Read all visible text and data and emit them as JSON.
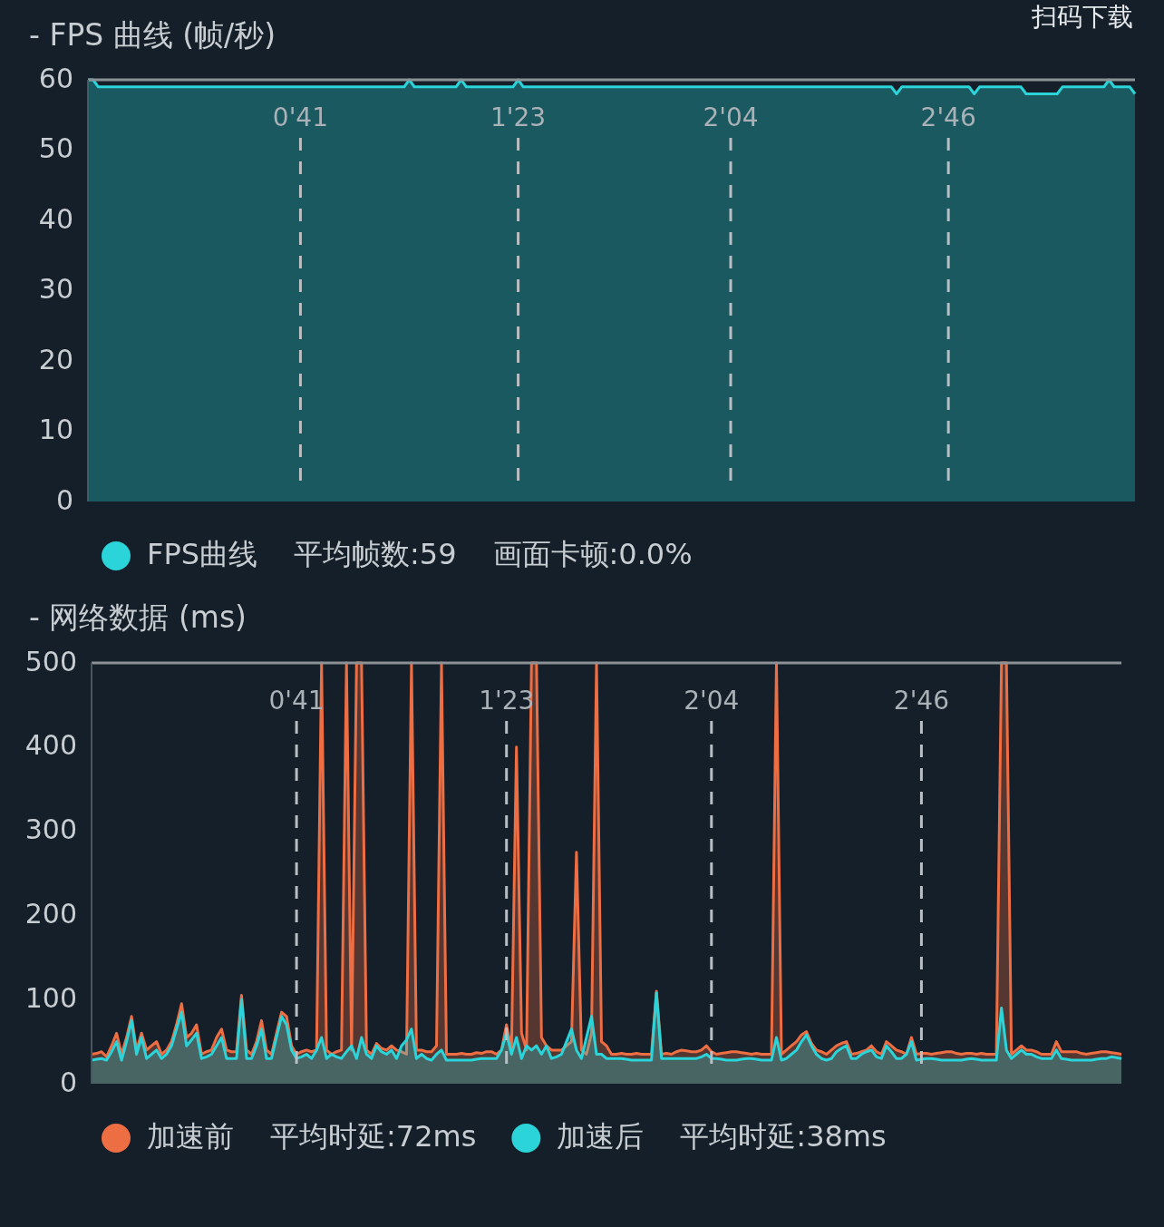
{
  "chart_data": [
    {
      "type": "area",
      "title": "- FPS 曲线 (帧/秒)",
      "categories": [
        null,
        null,
        null,
        null,
        null,
        null,
        null,
        null,
        null,
        null,
        null,
        null,
        null,
        null,
        null,
        null,
        null,
        null,
        null,
        null,
        null,
        null,
        null,
        null,
        null,
        null,
        null,
        null,
        null,
        null,
        null,
        null,
        null,
        null,
        null,
        null,
        null,
        null,
        null,
        null,
        null,
        "0'41",
        null,
        null,
        null,
        null,
        null,
        null,
        null,
        null,
        null,
        null,
        null,
        null,
        null,
        null,
        null,
        null,
        null,
        null,
        null,
        null,
        null,
        null,
        null,
        null,
        null,
        null,
        null,
        null,
        null,
        null,
        null,
        null,
        null,
        null,
        null,
        null,
        null,
        null,
        null,
        null,
        null,
        "1'23",
        null,
        null,
        null,
        null,
        null,
        null,
        null,
        null,
        null,
        null,
        null,
        null,
        null,
        null,
        null,
        null,
        null,
        null,
        null,
        null,
        null,
        null,
        null,
        null,
        null,
        null,
        null,
        null,
        null,
        null,
        null,
        null,
        null,
        null,
        null,
        null,
        null,
        null,
        null,
        null,
        "2'04",
        null,
        null,
        null,
        null,
        null,
        null,
        null,
        null,
        null,
        null,
        null,
        null,
        null,
        null,
        null,
        null,
        null,
        null,
        null,
        null,
        null,
        null,
        null,
        null,
        null,
        null,
        null,
        null,
        null,
        null,
        null,
        null,
        null,
        null,
        null,
        null,
        null,
        null,
        null,
        null,
        null,
        "2'46",
        null,
        null,
        null,
        null,
        null,
        null,
        null,
        null,
        null,
        null,
        null,
        null,
        null,
        null,
        null,
        null,
        null,
        null,
        null,
        null,
        null,
        null,
        null,
        null,
        null,
        null,
        null,
        null,
        null,
        null,
        null,
        null,
        null,
        null,
        null,
        null
      ],
      "series": [
        {
          "name": "FPS曲线",
          "color": "#2ad4d9",
          "values": [
            60,
            60,
            59,
            59,
            59,
            59,
            59,
            59,
            59,
            59,
            59,
            59,
            59,
            59,
            59,
            59,
            59,
            59,
            59,
            59,
            59,
            59,
            59,
            59,
            59,
            59,
            59,
            59,
            59,
            59,
            59,
            59,
            59,
            59,
            59,
            59,
            59,
            59,
            59,
            59,
            59,
            59,
            59,
            59,
            59,
            59,
            59,
            59,
            59,
            59,
            59,
            59,
            59,
            59,
            59,
            59,
            59,
            59,
            59,
            59,
            59,
            59,
            60,
            59,
            59,
            59,
            59,
            59,
            59,
            59,
            59,
            59,
            60,
            59,
            59,
            59,
            59,
            59,
            59,
            59,
            59,
            59,
            59,
            60,
            59,
            59,
            59,
            59,
            59,
            59,
            59,
            59,
            59,
            59,
            59,
            59,
            59,
            59,
            59,
            59,
            59,
            59,
            59,
            59,
            59,
            59,
            59,
            59,
            59,
            59,
            59,
            59,
            59,
            59,
            59,
            59,
            59,
            59,
            59,
            59,
            59,
            59,
            59,
            59,
            59,
            59,
            59,
            59,
            59,
            59,
            59,
            59,
            59,
            59,
            59,
            59,
            59,
            59,
            59,
            59,
            59,
            59,
            59,
            59,
            59,
            59,
            59,
            59,
            59,
            59,
            59,
            59,
            59,
            59,
            59,
            59,
            58,
            59,
            59,
            59,
            59,
            59,
            59,
            59,
            59,
            59,
            59,
            59,
            59,
            59,
            59,
            58,
            59,
            59,
            59,
            59,
            59,
            59,
            59,
            59,
            59,
            58,
            58,
            58,
            58,
            58,
            58,
            58,
            59,
            59,
            59,
            59,
            59,
            59,
            59,
            59,
            59,
            60,
            59,
            59,
            59,
            59,
            58
          ]
        }
      ],
      "ylim": [
        0,
        60
      ],
      "yticks": [
        0,
        10,
        20,
        30,
        40,
        50,
        60
      ],
      "legend": "bottom",
      "grid": "x",
      "annotations": [
        "平均帧数:59",
        "画面卡顿:0.0%",
        "扫码下载"
      ]
    },
    {
      "type": "area",
      "title": "- 网络数据 (ms)",
      "categories": [
        null,
        null,
        null,
        null,
        null,
        null,
        null,
        null,
        null,
        null,
        null,
        null,
        null,
        null,
        null,
        null,
        null,
        null,
        null,
        null,
        null,
        null,
        null,
        null,
        null,
        null,
        null,
        null,
        null,
        null,
        null,
        null,
        null,
        null,
        null,
        null,
        null,
        null,
        null,
        null,
        null,
        "0'41",
        null,
        null,
        null,
        null,
        null,
        null,
        null,
        null,
        null,
        null,
        null,
        null,
        null,
        null,
        null,
        null,
        null,
        null,
        null,
        null,
        null,
        null,
        null,
        null,
        null,
        null,
        null,
        null,
        null,
        null,
        null,
        null,
        null,
        null,
        null,
        null,
        null,
        null,
        null,
        null,
        null,
        "1'23",
        null,
        null,
        null,
        null,
        null,
        null,
        null,
        null,
        null,
        null,
        null,
        null,
        null,
        null,
        null,
        null,
        null,
        null,
        null,
        null,
        null,
        null,
        null,
        null,
        null,
        null,
        null,
        null,
        null,
        null,
        null,
        null,
        null,
        null,
        null,
        null,
        null,
        null,
        null,
        null,
        "2'04",
        null,
        null,
        null,
        null,
        null,
        null,
        null,
        null,
        null,
        null,
        null,
        null,
        null,
        null,
        null,
        null,
        null,
        null,
        null,
        null,
        null,
        null,
        null,
        null,
        null,
        null,
        null,
        null,
        null,
        null,
        null,
        null,
        null,
        null,
        null,
        null,
        null,
        null,
        null,
        null,
        null,
        "2'46",
        null,
        null,
        null,
        null,
        null,
        null,
        null,
        null,
        null,
        null,
        null,
        null,
        null,
        null,
        null,
        null,
        null,
        null,
        null,
        null,
        null,
        null,
        null,
        null,
        null,
        null,
        null,
        null,
        null,
        null,
        null,
        null,
        null,
        null,
        null,
        null,
        null,
        null,
        null,
        null
      ],
      "series": [
        {
          "name": "加速前",
          "color": "#ee6e44",
          "values": [
            35,
            36,
            38,
            32,
            45,
            60,
            35,
            55,
            80,
            40,
            60,
            40,
            45,
            50,
            35,
            40,
            50,
            70,
            95,
            55,
            60,
            70,
            35,
            38,
            40,
            55,
            65,
            40,
            38,
            38,
            105,
            40,
            35,
            50,
            75,
            40,
            35,
            60,
            85,
            80,
            45,
            35,
            38,
            40,
            38,
            40,
            500,
            40,
            35,
            38,
            40,
            500,
            40,
            500,
            500,
            40,
            35,
            48,
            42,
            40,
            45,
            40,
            38,
            35,
            500,
            40,
            40,
            38,
            38,
            45,
            500,
            35,
            35,
            35,
            36,
            35,
            35,
            37,
            36,
            38,
            38,
            35,
            40,
            70,
            40,
            400,
            60,
            40,
            500,
            500,
            55,
            45,
            40,
            40,
            40,
            45,
            50,
            275,
            40,
            35,
            60,
            500,
            50,
            45,
            35,
            35,
            36,
            35,
            35,
            36,
            35,
            35,
            35,
            110,
            35,
            36,
            35,
            38,
            40,
            39,
            38,
            38,
            40,
            45,
            38,
            35,
            36,
            37,
            38,
            38,
            37,
            36,
            35,
            36,
            35,
            35,
            35,
            500,
            35,
            40,
            45,
            50,
            58,
            62,
            48,
            40,
            38,
            35,
            40,
            45,
            48,
            50,
            35,
            36,
            38,
            40,
            45,
            38,
            35,
            50,
            45,
            40,
            38,
            35,
            55,
            35,
            36,
            36,
            35,
            36,
            37,
            38,
            38,
            36,
            35,
            36,
            36,
            35,
            36,
            35,
            35,
            35,
            500,
            500,
            35,
            40,
            45,
            40,
            40,
            38,
            35,
            35,
            35,
            50,
            38,
            38,
            38,
            38,
            36,
            35,
            36,
            37,
            38,
            38,
            37,
            36,
            35
          ]
        },
        {
          "name": "加速后",
          "color": "#2ad4d9",
          "values": [
            28,
            29,
            30,
            28,
            38,
            50,
            28,
            50,
            75,
            35,
            55,
            30,
            35,
            40,
            30,
            35,
            45,
            65,
            85,
            45,
            52,
            60,
            30,
            32,
            35,
            45,
            55,
            30,
            30,
            30,
            100,
            30,
            30,
            45,
            65,
            30,
            30,
            55,
            80,
            70,
            40,
            30,
            32,
            35,
            30,
            40,
            55,
            30,
            35,
            32,
            30,
            38,
            45,
            30,
            55,
            35,
            30,
            45,
            38,
            35,
            40,
            30,
            45,
            52,
            65,
            30,
            35,
            30,
            28,
            35,
            40,
            28,
            28,
            28,
            28,
            28,
            28,
            29,
            30,
            30,
            30,
            30,
            40,
            60,
            35,
            55,
            30,
            45,
            40,
            45,
            35,
            45,
            30,
            32,
            35,
            50,
            65,
            40,
            30,
            55,
            80,
            35,
            35,
            30,
            30,
            30,
            30,
            29,
            28,
            28,
            28,
            28,
            28,
            108,
            30,
            30,
            30,
            30,
            30,
            30,
            30,
            30,
            32,
            35,
            30,
            30,
            29,
            28,
            28,
            28,
            29,
            30,
            30,
            29,
            28,
            28,
            28,
            55,
            28,
            30,
            35,
            40,
            50,
            58,
            45,
            35,
            30,
            28,
            30,
            38,
            42,
            45,
            30,
            30,
            35,
            38,
            40,
            32,
            30,
            45,
            38,
            30,
            30,
            35,
            50,
            28,
            29,
            30,
            30,
            29,
            28,
            28,
            28,
            28,
            28,
            29,
            30,
            29,
            28,
            28,
            28,
            28,
            90,
            40,
            30,
            35,
            40,
            35,
            35,
            32,
            30,
            30,
            30,
            40,
            30,
            29,
            28,
            28,
            28,
            28,
            28,
            29,
            30,
            30,
            32,
            31,
            30
          ]
        }
      ],
      "ylim": [
        0,
        500
      ],
      "yticks": [
        0,
        100,
        200,
        300,
        400,
        500
      ],
      "legend": "bottom",
      "grid": "x",
      "annotations": [
        "平均时延:72ms",
        "平均时延:38ms"
      ]
    }
  ]
}
